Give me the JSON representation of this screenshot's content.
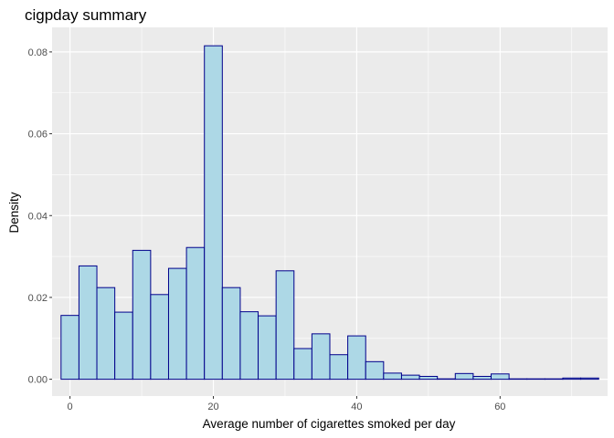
{
  "chart_data": {
    "type": "bar",
    "title": "cigpday summary",
    "xlabel": "Average number of cigarettes smoked per day",
    "ylabel": "Density",
    "xlim": [
      -2.5,
      75.0
    ],
    "ylim": [
      -0.0041,
      0.086
    ],
    "x_ticks": [
      0,
      20,
      40,
      60
    ],
    "x_tick_labels": [
      "0",
      "20",
      "40",
      "60"
    ],
    "y_ticks": [
      0.0,
      0.02,
      0.04,
      0.06,
      0.08
    ],
    "y_tick_labels": [
      "0.00",
      "0.02",
      "0.04",
      "0.06",
      "0.08"
    ],
    "bin_width": 2.5,
    "bin_starts": [
      -1.25,
      1.25,
      3.75,
      6.25,
      8.75,
      11.25,
      13.75,
      16.25,
      18.75,
      21.25,
      23.75,
      26.25,
      28.75,
      31.25,
      33.75,
      36.25,
      38.75,
      41.25,
      43.75,
      46.25,
      48.75,
      51.25,
      53.75,
      56.25,
      58.75,
      61.25,
      63.75,
      66.25,
      68.75,
      71.25
    ],
    "values": [
      0.0156,
      0.0277,
      0.0224,
      0.0164,
      0.0315,
      0.0207,
      0.0271,
      0.0322,
      0.0815,
      0.0224,
      0.0165,
      0.0155,
      0.0265,
      0.0075,
      0.0111,
      0.006,
      0.0106,
      0.0043,
      0.0015,
      0.001,
      0.0007,
      0.0001,
      0.0014,
      0.0007,
      0.0013,
      0.0001,
      0.0001,
      0.0001,
      0.0003,
      0.0003
    ],
    "grid": true,
    "colors": {
      "fill": "#add8e6",
      "outline": "#00008b",
      "panel": "#ebebeb",
      "grid_major": "#ffffff",
      "tick_label": "#4d4d4d"
    }
  }
}
